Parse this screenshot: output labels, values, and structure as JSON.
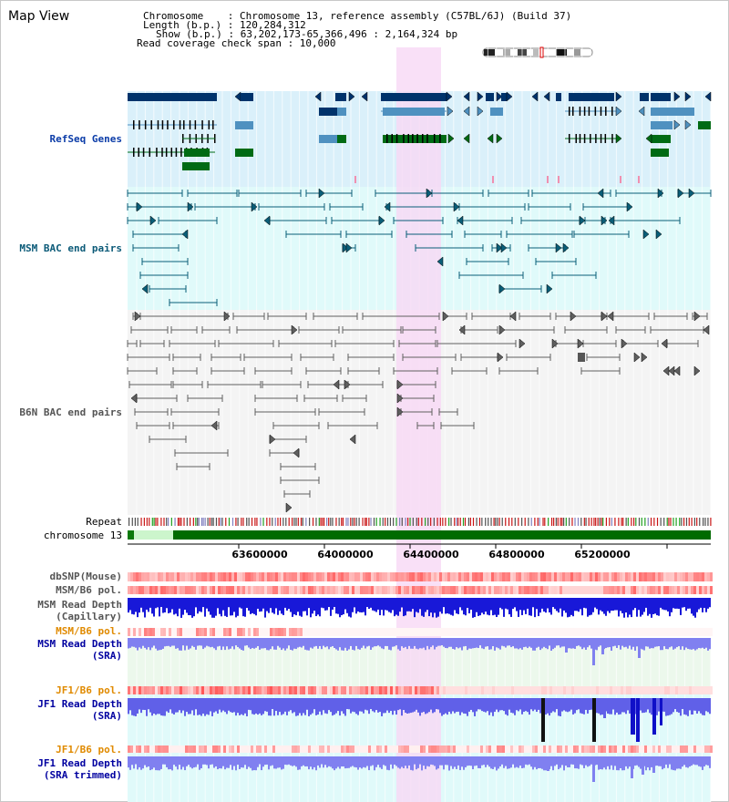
{
  "view": {
    "title": "Map View",
    "info": {
      "chromosome_line": "Chromosome    : Chromosome 13, reference assembly (C57BL/6J) (Build 37)",
      "length_line": "Length (b.p.) : 120,284,312",
      "show_line": "Show (b.p.) : 63,202,173-65,366,496 : 2,164,324 bp",
      "coverage_line": "Read coverage check span : 10,000"
    }
  },
  "tracks": {
    "refseq_genes": "RefSeq Genes",
    "msm_bac": "MSM BAC end pairs",
    "b6n_bac": "B6N BAC end pairs",
    "repeat": "Repeat",
    "chromosome": "chromosome 13",
    "dbsnp": "dbSNP(Mouse)",
    "msm_b6_pol_1": "MSM/B6 pol.",
    "msm_depth_cap_1": "MSM Read Depth",
    "msm_depth_cap_2": "(Capillary)",
    "msm_b6_pol_2": "MSM/B6 pol.",
    "msm_depth_sra_1": "MSM Read Depth",
    "msm_depth_sra_2": "(SRA)",
    "jf1_b6_pol_1": "JF1/B6 pol.",
    "jf1_depth_sra_1": "JF1 Read Depth",
    "jf1_depth_sra_2": "(SRA)",
    "jf1_b6_pol_2": "JF1/B6 pol.",
    "jf1_depth_trim_1": "JF1 Read Depth",
    "jf1_depth_trim_2": "(SRA trimmed)"
  },
  "axis_ticks": [
    "63600000",
    "64000000",
    "64400000",
    "64800000",
    "65200000"
  ],
  "colors": {
    "gene_dark": "#00336b",
    "gene_mid": "#4f91c0",
    "gene_green": "#006b14",
    "msm_line": "#0a5e78",
    "b6n_line": "#606060",
    "highlight": "#f8d8f5",
    "label_blue": "#0b3ca8",
    "label_teal": "#0b5a78",
    "label_grey": "#555555",
    "label_orange": "#e08a00",
    "label_navy": "#0000a0"
  }
}
